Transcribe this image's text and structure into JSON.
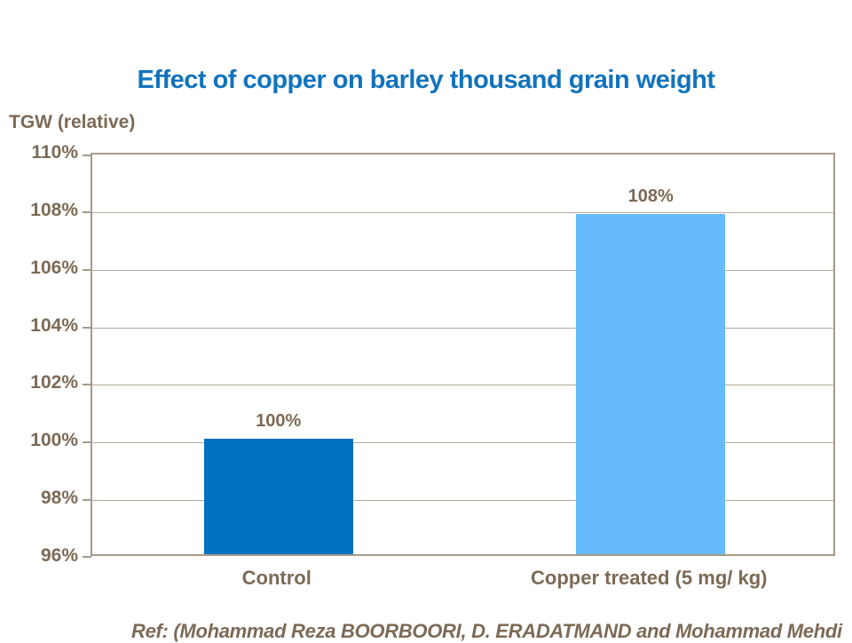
{
  "title": "Effect of copper on barley thousand grain weight",
  "y_axis_title": "TGW (relative)",
  "footer_ref": "Ref: (Mohammad Reza BOORBOORI,  D. ERADATMAND and Mohammad Mehdi",
  "colors": {
    "title_blue": "#1173bd",
    "text_brown": "#7c6a56",
    "axis_border": "#a79a89",
    "gridline": "#b5a99a",
    "background": "#ffffff"
  },
  "chart_data": {
    "type": "bar",
    "title": "Effect of copper on barley thousand grain weight",
    "ylabel": "TGW (relative)",
    "xlabel": "",
    "categories": [
      "Control",
      "Copper treated (5 mg/ kg)"
    ],
    "values": [
      100,
      107.8
    ],
    "data_labels": [
      "100%",
      "108%"
    ],
    "bar_colors": [
      "#0070c0",
      "#66bbfc"
    ],
    "ylim": [
      96,
      110
    ],
    "ytick_step": 2,
    "ytick_labels": [
      "110%",
      "108%",
      "106%",
      "104%",
      "102%",
      "100%",
      "98%",
      "96%"
    ],
    "grid": true,
    "legend": false
  }
}
